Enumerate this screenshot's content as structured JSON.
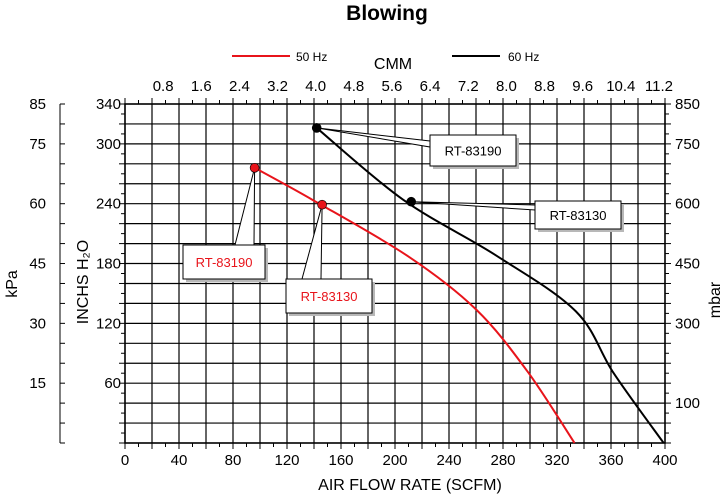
{
  "chart_data": {
    "type": "line",
    "title": "Blowing",
    "xlabel": "AIR FLOW RATE (SCFM)",
    "x2label": "CMM",
    "ylabel_left_outer": "kPa",
    "ylabel_left_inner": "INCHS H₂O",
    "ylabel_right": "mbar",
    "xlim": [
      0,
      400
    ],
    "ylim": [
      0,
      340
    ],
    "grid": true,
    "legend_position": "top",
    "x_ticks": [
      "0",
      "40",
      "80",
      "120",
      "160",
      "200",
      "240",
      "280",
      "320",
      "360",
      "400"
    ],
    "x2_ticks": [
      "0.8",
      "1.6",
      "2.4",
      "3.2",
      "4.0",
      "4.8",
      "5.6",
      "6.4",
      "7.2",
      "8.0",
      "8.8",
      "9.6",
      "10.4",
      "11.2"
    ],
    "y_inches_ticks": [
      "60",
      "120",
      "180",
      "240",
      "300",
      "340"
    ],
    "y_kpa_ticks": [
      "15",
      "30",
      "45",
      "60",
      "75",
      "85"
    ],
    "y_mbar_ticks": [
      "100",
      "300",
      "450",
      "600",
      "750",
      "850"
    ],
    "series": [
      {
        "name": "50 Hz",
        "color": "#e8141b",
        "points": [
          [
            96,
            276
          ],
          [
            140,
            243
          ],
          [
            210,
            187
          ],
          [
            260,
            134
          ],
          [
            298,
            72
          ],
          [
            333,
            0
          ]
        ]
      },
      {
        "name": "60 Hz",
        "color": "#000000",
        "points": [
          [
            142,
            316
          ],
          [
            206,
            244
          ],
          [
            275,
            188
          ],
          [
            334,
            132
          ],
          [
            362,
            70
          ],
          [
            399,
            0
          ]
        ]
      }
    ],
    "markers": [
      {
        "x": 96,
        "y": 276,
        "color": "#e8141b"
      },
      {
        "x": 146,
        "y": 239,
        "color": "#e8141b"
      },
      {
        "x": 142,
        "y": 316,
        "color": "#000000"
      },
      {
        "x": 212,
        "y": 242,
        "color": "#000000"
      }
    ],
    "annotations": [
      {
        "text": "RT-83190",
        "color": "#e8141b"
      },
      {
        "text": "RT-83130",
        "color": "#e8141b"
      },
      {
        "text": "RT-83190",
        "color": "#000000"
      },
      {
        "text": "RT-83130",
        "color": "#000000"
      }
    ]
  }
}
